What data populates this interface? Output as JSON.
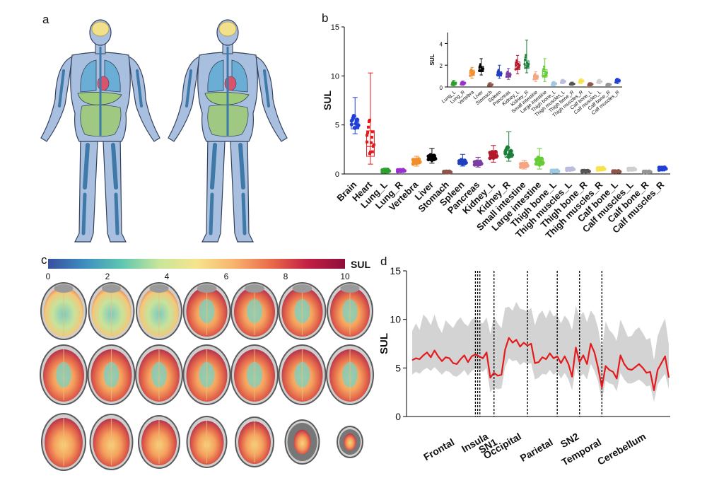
{
  "panels": {
    "a": "a",
    "b": "b",
    "c": "c",
    "d": "d"
  },
  "colors": {
    "body": "#a9bfe0",
    "bodyStroke": "#33405c",
    "brain": "#f3e08a",
    "lung": "#6aaed6",
    "organ": "#9ecb7a",
    "bone": "#3e79a8",
    "red": "#e41a1c",
    "band": "#d3d3d3"
  },
  "panel_c": {
    "colorbar_label": "SUL",
    "colorbar_ticks": [
      "0",
      "2",
      "4",
      "6",
      "8",
      "10"
    ],
    "colormap": [
      "#3a4fa0",
      "#3d8fc0",
      "#5fc7b0",
      "#c9e69a",
      "#f6e48c",
      "#f7b46e",
      "#ea6b4a",
      "#c21f45",
      "#8e0f3b"
    ],
    "slices_per_row": [
      7,
      7,
      7
    ]
  },
  "chart_data": [
    {
      "id": "b-main",
      "type": "box",
      "ylabel": "SUL",
      "ylim": [
        0,
        15
      ],
      "yticks": [
        0,
        5,
        10,
        15
      ],
      "categories": [
        "Brain",
        "Heart",
        "Lung_L",
        "Lung_R",
        "Vertebra",
        "Liver",
        "Stomach",
        "Spleen",
        "Pancreas",
        "Kidney_L",
        "Kidney_R",
        "Small intestine",
        "Large intestine",
        "Thigh bone_L",
        "Thigh muscles_L",
        "Thigh bone_R",
        "Thigh muscles_R",
        "Calf bone_L",
        "Calf muscles_L",
        "Calf bone_R",
        "Calf muscles_R"
      ],
      "colors": [
        "#1f3fd6",
        "#e41a1c",
        "#2ca02c",
        "#9b30d0",
        "#f28e2b",
        "#000000",
        "#8c564b",
        "#1f3fbf",
        "#7b3fa0",
        "#b2182b",
        "#1b7f3a",
        "#f4a582",
        "#66cc33",
        "#9ecae1",
        "#bcbddc",
        "#555555",
        "#f7e34a",
        "#8c564b",
        "#cfcfcf",
        "#969696",
        "#1f3fd6"
      ],
      "boxes": [
        [
          4.1,
          4.6,
          5.1,
          5.6,
          7.8
        ],
        [
          1.0,
          1.8,
          2.8,
          4.4,
          10.3
        ],
        [
          0.1,
          0.2,
          0.3,
          0.45,
          0.6
        ],
        [
          0.15,
          0.25,
          0.35,
          0.45,
          0.55
        ],
        [
          0.8,
          1.05,
          1.3,
          1.55,
          1.8
        ],
        [
          1.1,
          1.4,
          1.6,
          1.9,
          2.6
        ],
        [
          0.05,
          0.12,
          0.2,
          0.28,
          0.4
        ],
        [
          0.8,
          1.0,
          1.2,
          1.4,
          2.0
        ],
        [
          0.7,
          0.9,
          1.1,
          1.3,
          1.7
        ],
        [
          1.2,
          1.6,
          1.9,
          2.3,
          2.9
        ],
        [
          1.3,
          1.7,
          2.0,
          2.4,
          4.3
        ],
        [
          0.5,
          0.7,
          0.9,
          1.1,
          1.4
        ],
        [
          0.5,
          0.9,
          1.2,
          1.6,
          2.6
        ],
        [
          0.1,
          0.2,
          0.3,
          0.4,
          0.5
        ],
        [
          0.3,
          0.4,
          0.5,
          0.6,
          0.7
        ],
        [
          0.15,
          0.25,
          0.3,
          0.35,
          0.45
        ],
        [
          0.3,
          0.45,
          0.55,
          0.65,
          0.75
        ],
        [
          0.1,
          0.18,
          0.25,
          0.32,
          0.4
        ],
        [
          0.3,
          0.42,
          0.5,
          0.58,
          0.7
        ],
        [
          0.1,
          0.17,
          0.22,
          0.28,
          0.35
        ],
        [
          0.3,
          0.45,
          0.55,
          0.7,
          0.8
        ]
      ]
    },
    {
      "id": "b-inset",
      "type": "box",
      "ylabel": "SUL",
      "ylim": [
        0,
        5
      ],
      "yticks": [
        0,
        2,
        4
      ],
      "categories": [
        "Lung_L",
        "Lung_R",
        "Vertebra",
        "Liver",
        "Stomach",
        "Spleen",
        "Pancreas",
        "Kidney_L",
        "Kidney_R",
        "Small intestine",
        "Large intestine",
        "Thigh bone_L",
        "Thigh muscles_L",
        "Thigh bone_R",
        "Thigh muscles_R",
        "Calf bone_L",
        "Calf muscles_L",
        "Calf bone_R",
        "Calf muscles_R"
      ],
      "colors": [
        "#2ca02c",
        "#9b30d0",
        "#f28e2b",
        "#000000",
        "#8c564b",
        "#1f3fbf",
        "#7b3fa0",
        "#b2182b",
        "#1b7f3a",
        "#f4a582",
        "#66cc33",
        "#9ecae1",
        "#bcbddc",
        "#555555",
        "#f7e34a",
        "#8c564b",
        "#cfcfcf",
        "#969696",
        "#1f3fd6"
      ],
      "boxes": [
        [
          0.1,
          0.2,
          0.3,
          0.45,
          0.6
        ],
        [
          0.15,
          0.25,
          0.35,
          0.45,
          0.55
        ],
        [
          0.8,
          1.05,
          1.3,
          1.55,
          1.8
        ],
        [
          1.1,
          1.4,
          1.6,
          1.9,
          2.6
        ],
        [
          0.05,
          0.12,
          0.2,
          0.28,
          0.4
        ],
        [
          0.8,
          1.0,
          1.2,
          1.4,
          2.0
        ],
        [
          0.7,
          0.9,
          1.1,
          1.3,
          1.7
        ],
        [
          1.2,
          1.6,
          1.9,
          2.3,
          2.9
        ],
        [
          1.3,
          1.7,
          2.0,
          2.4,
          4.3
        ],
        [
          0.5,
          0.7,
          0.9,
          1.1,
          1.4
        ],
        [
          0.5,
          0.9,
          1.2,
          1.6,
          2.6
        ],
        [
          0.1,
          0.2,
          0.3,
          0.4,
          0.5
        ],
        [
          0.3,
          0.4,
          0.5,
          0.6,
          0.7
        ],
        [
          0.15,
          0.25,
          0.3,
          0.35,
          0.45
        ],
        [
          0.3,
          0.45,
          0.55,
          0.65,
          0.75
        ],
        [
          0.1,
          0.18,
          0.25,
          0.32,
          0.4
        ],
        [
          0.3,
          0.42,
          0.5,
          0.58,
          0.7
        ],
        [
          0.1,
          0.17,
          0.22,
          0.28,
          0.35
        ],
        [
          0.3,
          0.45,
          0.55,
          0.7,
          0.8
        ]
      ]
    },
    {
      "id": "d",
      "type": "line",
      "ylabel": "SUL",
      "ylim": [
        0,
        15
      ],
      "yticks": [
        0,
        5,
        10,
        15
      ],
      "n_points": 70,
      "region_labels": [
        "Frontal",
        "Insula",
        "SN1",
        "Occipital",
        "Parietal",
        "SN2",
        "Temporal",
        "Cerebellum"
      ],
      "boundaries_at_index": [
        17,
        17.6,
        18.2,
        22,
        31,
        39,
        45,
        51
      ],
      "series": [
        {
          "name": "",
          "color": "#e41a1c",
          "values": [
            5.8,
            6.0,
            5.9,
            6.3,
            6.6,
            6.1,
            6.8,
            6.2,
            5.7,
            6.1,
            6.0,
            5.5,
            5.4,
            5.9,
            6.3,
            5.6,
            6.2,
            6.4,
            6.2,
            6.0,
            6.6,
            4.0,
            4.5,
            4.2,
            4.3,
            6.9,
            8.1,
            7.6,
            7.9,
            7.2,
            7.6,
            7.3,
            7.5,
            5.5,
            5.6,
            6.1,
            5.9,
            6.5,
            6.0,
            6.2,
            5.5,
            6.2,
            5.4,
            4.1,
            7.1,
            5.6,
            6.3,
            5.4,
            7.5,
            6.6,
            5.0,
            3.0,
            5.2,
            4.8,
            4.6,
            3.9,
            6.3,
            5.4,
            4.9,
            4.8,
            5.1,
            5.4,
            5.0,
            4.5,
            4.6,
            2.7,
            4.8,
            5.5,
            6.2,
            4.0
          ]
        },
        {
          "name": "",
          "color": "#d3d3d3",
          "lower": [
            4.3,
            4.6,
            4.4,
            4.8,
            5.0,
            4.7,
            5.1,
            4.7,
            4.3,
            4.7,
            4.6,
            4.2,
            4.1,
            4.4,
            4.8,
            4.2,
            4.7,
            4.9,
            4.8,
            4.6,
            5.0,
            2.5,
            3.0,
            2.8,
            2.9,
            5.1,
            6.0,
            5.7,
            5.8,
            5.3,
            5.6,
            5.4,
            5.5,
            3.8,
            4.0,
            4.4,
            4.3,
            4.8,
            4.3,
            4.6,
            3.9,
            4.5,
            3.8,
            2.7,
            5.1,
            4.0,
            4.4,
            3.8,
            5.4,
            4.7,
            3.6,
            1.6,
            3.7,
            3.4,
            3.3,
            2.6,
            4.5,
            3.8,
            3.4,
            3.4,
            3.6,
            3.8,
            3.5,
            3.1,
            3.2,
            1.5,
            3.3,
            3.9,
            4.4,
            2.8
          ],
          "upper": [
            8.8,
            9.6,
            8.9,
            10.5,
            10.1,
            9.4,
            10.5,
            9.3,
            8.6,
            9.9,
            9.5,
            9.1,
            9.8,
            10.2,
            9.6,
            9.3,
            10.0,
            10.2,
            9.7,
            9.6,
            10.2,
            8.5,
            10.3,
            9.6,
            9.1,
            11.2,
            11.3,
            10.9,
            11.8,
            11.1,
            11.0,
            10.8,
            11.2,
            9.4,
            10.5,
            10.9,
            10.1,
            11.0,
            10.3,
            10.5,
            9.6,
            10.4,
            9.9,
            8.9,
            11.4,
            10.2,
            10.8,
            9.7,
            10.9,
            10.4,
            9.1,
            6.8,
            9.8,
            8.9,
            8.5,
            7.8,
            10.0,
            9.1,
            8.2,
            8.3,
            8.9,
            9.2,
            8.6,
            7.9,
            8.1,
            5.8,
            8.3,
            9.3,
            10.1,
            7.4
          ]
        }
      ]
    }
  ]
}
